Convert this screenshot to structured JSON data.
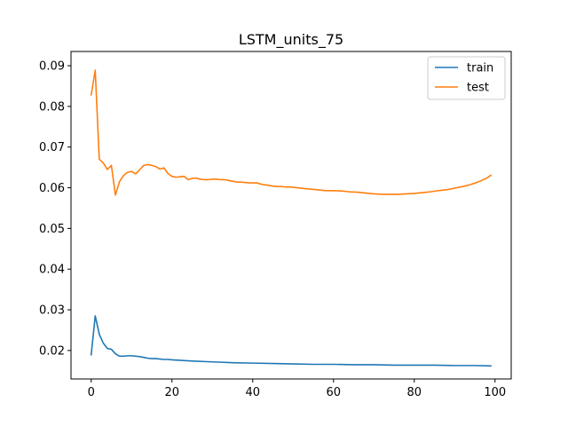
{
  "chart_data": {
    "type": "line",
    "title": "LSTM_units_75",
    "xlabel": "",
    "ylabel": "",
    "xlim": [
      -5,
      104
    ],
    "ylim": [
      0.013,
      0.0935
    ],
    "xticks": [
      0,
      20,
      40,
      60,
      80,
      100
    ],
    "yticks": [
      0.02,
      0.03,
      0.04,
      0.05,
      0.06,
      0.07,
      0.08,
      0.09
    ],
    "xtick_labels": [
      "0",
      "20",
      "40",
      "60",
      "80",
      "100"
    ],
    "ytick_labels": [
      "0.02",
      "0.03",
      "0.04",
      "0.05",
      "0.06",
      "0.07",
      "0.08",
      "0.09"
    ],
    "grid": false,
    "legend_position": "top-right",
    "series": [
      {
        "name": "train",
        "color": "#1f77b4",
        "x": [
          0,
          1,
          2,
          3,
          4,
          5,
          6,
          7,
          8,
          9,
          10,
          11,
          12,
          13,
          14,
          15,
          16,
          17,
          18,
          19,
          20,
          25,
          30,
          35,
          40,
          45,
          50,
          55,
          60,
          65,
          70,
          75,
          80,
          85,
          90,
          95,
          99
        ],
        "y": [
          0.0189,
          0.0285,
          0.024,
          0.0218,
          0.0205,
          0.0203,
          0.0192,
          0.0186,
          0.0186,
          0.0187,
          0.0187,
          0.0186,
          0.0185,
          0.0183,
          0.0181,
          0.018,
          0.018,
          0.0179,
          0.0178,
          0.0178,
          0.0177,
          0.0174,
          0.0172,
          0.017,
          0.0169,
          0.0168,
          0.0167,
          0.0166,
          0.0166,
          0.0165,
          0.0165,
          0.0164,
          0.0164,
          0.0164,
          0.0163,
          0.0163,
          0.0162
        ]
      },
      {
        "name": "test",
        "color": "#ff7f0e",
        "x": [
          0,
          1,
          2,
          3,
          4,
          5,
          6,
          7,
          8,
          9,
          10,
          11,
          12,
          13,
          14,
          15,
          16,
          17,
          18,
          19,
          20,
          21,
          22,
          23,
          24,
          25,
          26,
          27,
          28,
          29,
          30,
          31,
          32,
          33,
          34,
          35,
          36,
          37,
          38,
          39,
          40,
          41,
          42,
          43,
          44,
          45,
          46,
          47,
          48,
          49,
          50,
          52,
          54,
          56,
          58,
          60,
          62,
          64,
          66,
          68,
          70,
          72,
          74,
          76,
          78,
          80,
          82,
          84,
          86,
          88,
          90,
          92,
          94,
          96,
          98,
          99
        ],
        "y": [
          0.0828,
          0.0889,
          0.067,
          0.0661,
          0.0645,
          0.0655,
          0.0582,
          0.0615,
          0.063,
          0.0638,
          0.064,
          0.0634,
          0.0644,
          0.0655,
          0.0657,
          0.0655,
          0.0652,
          0.0646,
          0.0649,
          0.0635,
          0.0628,
          0.0626,
          0.0627,
          0.0628,
          0.062,
          0.0623,
          0.0624,
          0.0621,
          0.062,
          0.062,
          0.0621,
          0.0621,
          0.062,
          0.062,
          0.0618,
          0.0616,
          0.0614,
          0.0614,
          0.0613,
          0.0612,
          0.0612,
          0.0612,
          0.0609,
          0.0607,
          0.0606,
          0.0604,
          0.0603,
          0.0603,
          0.0602,
          0.0602,
          0.0601,
          0.0599,
          0.0597,
          0.0595,
          0.0593,
          0.0593,
          0.0592,
          0.059,
          0.0589,
          0.0587,
          0.0585,
          0.0584,
          0.0584,
          0.0584,
          0.0585,
          0.0586,
          0.0588,
          0.059,
          0.0593,
          0.0595,
          0.0599,
          0.0603,
          0.0608,
          0.0615,
          0.0624,
          0.0631
        ]
      }
    ]
  }
}
